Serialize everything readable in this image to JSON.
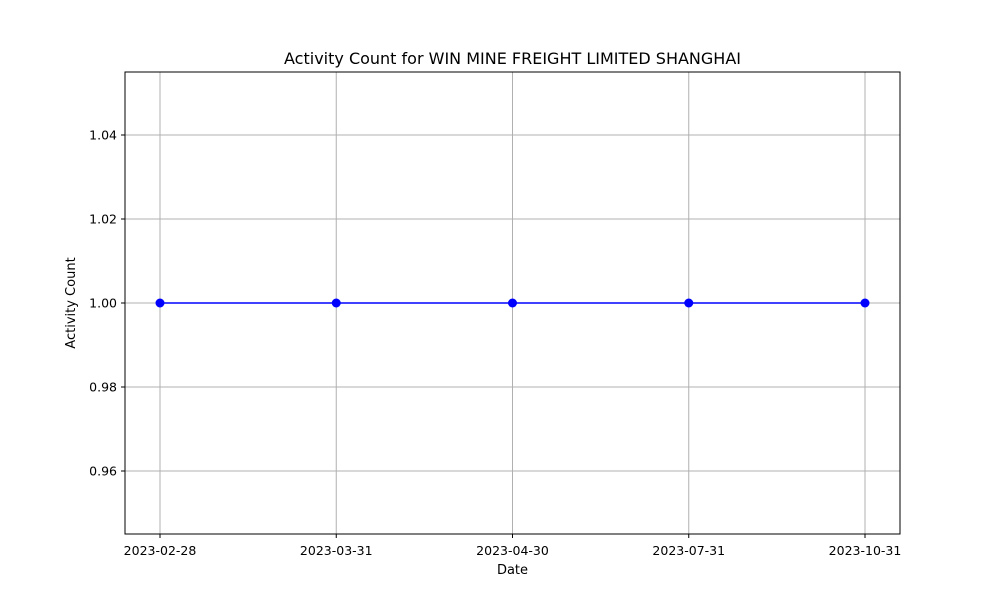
{
  "chart_data": {
    "type": "line",
    "title": "Activity Count for WIN MINE FREIGHT LIMITED SHANGHAI",
    "xlabel": "Date",
    "ylabel": "Activity Count",
    "categories": [
      "2023-02-28",
      "2023-03-31",
      "2023-04-30",
      "2023-07-31",
      "2023-10-31"
    ],
    "series": [
      {
        "values": [
          1,
          1,
          1,
          1,
          1
        ],
        "color": "#0000ff",
        "marker": "circle"
      }
    ],
    "ylim": [
      0.945,
      1.055
    ],
    "yticks": [
      0.96,
      0.98,
      1.0,
      1.02,
      1.04
    ],
    "ytick_labels": [
      "0.96",
      "0.98",
      "1.00",
      "1.02",
      "1.04"
    ],
    "grid": true,
    "grid_color": "#b0b0b0",
    "legend": "none"
  }
}
